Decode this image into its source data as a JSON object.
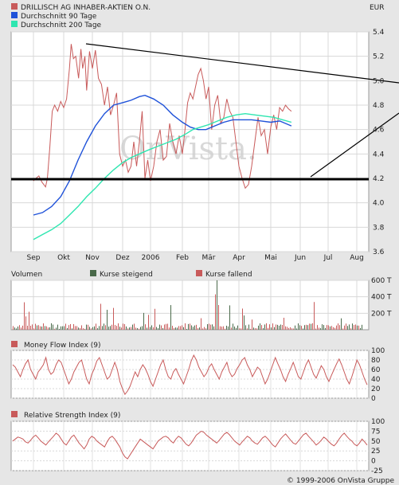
{
  "currency": "EUR",
  "copyright": "© 1999-2006 OnVista Gruppe",
  "watermark": "OnVista.",
  "colors": {
    "price": "#c85a5a",
    "ma90": "#1f52d9",
    "ma200": "#2ee6b0",
    "volume_up": "#4a6a4a",
    "volume_down": "#c85a5a",
    "indicator": "#c85a5a",
    "support": "#000000"
  },
  "chart_data": [
    {
      "type": "line",
      "title": "",
      "legend": [
        "DRILLISCH AG INHABER-AKTIEN O.N.",
        "Durchschnitt 90 Tage",
        "Durchschnitt 200 Tage"
      ],
      "legend_placement": "top-left",
      "x_ticks": [
        "Sep",
        "Okt",
        "Nov",
        "Dez",
        "2006",
        "Feb",
        "Mär",
        "Apr",
        "Mai",
        "Jun",
        "Jul",
        "Aug"
      ],
      "y_ticks": [
        "5.4",
        "5.2",
        "5.0",
        "4.8",
        "4.6",
        "4.4",
        "4.2",
        "4.0",
        "3.8",
        "3.6"
      ],
      "ylim": [
        3.6,
        5.4
      ],
      "grid": true,
      "series": [
        {
          "name": "DRILLISCH AG INHABER-AKTIEN O.N.",
          "points": [
            [
              0,
              4.18
            ],
            [
              0.08,
              4.2
            ],
            [
              0.18,
              4.22
            ],
            [
              0.28,
              4.17
            ],
            [
              0.4,
              4.13
            ],
            [
              0.46,
              4.2
            ],
            [
              0.54,
              4.45
            ],
            [
              0.62,
              4.75
            ],
            [
              0.7,
              4.8
            ],
            [
              0.8,
              4.75
            ],
            [
              0.9,
              4.83
            ],
            [
              1.0,
              4.78
            ],
            [
              1.1,
              4.85
            ],
            [
              1.2,
              5.1
            ],
            [
              1.26,
              5.3
            ],
            [
              1.34,
              5.18
            ],
            [
              1.42,
              5.2
            ],
            [
              1.52,
              5.02
            ],
            [
              1.6,
              5.26
            ],
            [
              1.66,
              5.1
            ],
            [
              1.74,
              5.2
            ],
            [
              1.8,
              4.92
            ],
            [
              1.9,
              5.24
            ],
            [
              2.0,
              5.1
            ],
            [
              2.1,
              5.25
            ],
            [
              2.2,
              5.02
            ],
            [
              2.3,
              4.97
            ],
            [
              2.4,
              4.8
            ],
            [
              2.5,
              4.95
            ],
            [
              2.6,
              4.72
            ],
            [
              2.7,
              4.8
            ],
            [
              2.8,
              4.9
            ],
            [
              2.9,
              4.4
            ],
            [
              3.0,
              4.3
            ],
            [
              3.1,
              4.35
            ],
            [
              3.2,
              4.25
            ],
            [
              3.3,
              4.3
            ],
            [
              3.4,
              4.5
            ],
            [
              3.5,
              4.3
            ],
            [
              3.6,
              4.5
            ],
            [
              3.7,
              4.75
            ],
            [
              3.8,
              4.2
            ],
            [
              3.9,
              4.35
            ],
            [
              4.0,
              4.18
            ],
            [
              4.1,
              4.3
            ],
            [
              4.2,
              4.5
            ],
            [
              4.3,
              4.6
            ],
            [
              4.4,
              4.35
            ],
            [
              4.5,
              4.38
            ],
            [
              4.6,
              4.65
            ],
            [
              4.7,
              4.5
            ],
            [
              4.8,
              4.4
            ],
            [
              4.9,
              4.55
            ],
            [
              5.0,
              4.4
            ],
            [
              5.1,
              4.6
            ],
            [
              5.2,
              4.82
            ],
            [
              5.3,
              4.9
            ],
            [
              5.4,
              4.85
            ],
            [
              5.5,
              4.95
            ],
            [
              5.6,
              5.05
            ],
            [
              5.7,
              5.1
            ],
            [
              5.8,
              5.0
            ],
            [
              5.9,
              4.85
            ],
            [
              6.0,
              4.95
            ],
            [
              6.1,
              4.6
            ],
            [
              6.2,
              4.8
            ],
            [
              6.3,
              4.88
            ],
            [
              6.4,
              4.65
            ],
            [
              6.5,
              4.7
            ],
            [
              6.6,
              4.85
            ],
            [
              6.7,
              4.75
            ],
            [
              6.8,
              4.7
            ],
            [
              6.9,
              4.5
            ],
            [
              7.0,
              4.3
            ],
            [
              7.1,
              4.2
            ],
            [
              7.2,
              4.12
            ],
            [
              7.3,
              4.15
            ],
            [
              7.4,
              4.3
            ],
            [
              7.5,
              4.5
            ],
            [
              7.6,
              4.7
            ],
            [
              7.7,
              4.55
            ],
            [
              7.8,
              4.6
            ],
            [
              7.9,
              4.4
            ],
            [
              8.0,
              4.62
            ],
            [
              8.1,
              4.72
            ],
            [
              8.2,
              4.6
            ],
            [
              8.3,
              4.78
            ],
            [
              8.4,
              4.75
            ],
            [
              8.5,
              4.8
            ],
            [
              8.6,
              4.77
            ],
            [
              8.7,
              4.75
            ]
          ]
        },
        {
          "name": "Durchschnitt 90 Tage",
          "points": [
            [
              0,
              3.9
            ],
            [
              0.3,
              3.92
            ],
            [
              0.6,
              3.97
            ],
            [
              0.9,
              4.05
            ],
            [
              1.2,
              4.18
            ],
            [
              1.5,
              4.35
            ],
            [
              1.8,
              4.5
            ],
            [
              2.1,
              4.63
            ],
            [
              2.4,
              4.73
            ],
            [
              2.7,
              4.8
            ],
            [
              3.0,
              4.82
            ],
            [
              3.3,
              4.84
            ],
            [
              3.6,
              4.87
            ],
            [
              3.8,
              4.88
            ],
            [
              4.1,
              4.85
            ],
            [
              4.4,
              4.8
            ],
            [
              4.7,
              4.72
            ],
            [
              5.0,
              4.66
            ],
            [
              5.3,
              4.62
            ],
            [
              5.6,
              4.6
            ],
            [
              5.9,
              4.6
            ],
            [
              6.2,
              4.63
            ],
            [
              6.5,
              4.66
            ],
            [
              6.8,
              4.68
            ],
            [
              7.1,
              4.68
            ],
            [
              7.4,
              4.68
            ],
            [
              7.7,
              4.67
            ],
            [
              8.0,
              4.66
            ],
            [
              8.3,
              4.67
            ],
            [
              8.5,
              4.65
            ],
            [
              8.7,
              4.63
            ]
          ]
        },
        {
          "name": "Durchschnitt 200 Tage",
          "points": [
            [
              0,
              3.7
            ],
            [
              0.3,
              3.74
            ],
            [
              0.6,
              3.78
            ],
            [
              0.9,
              3.83
            ],
            [
              1.2,
              3.9
            ],
            [
              1.5,
              3.97
            ],
            [
              1.8,
              4.05
            ],
            [
              2.1,
              4.12
            ],
            [
              2.4,
              4.2
            ],
            [
              2.7,
              4.27
            ],
            [
              3.0,
              4.33
            ],
            [
              3.3,
              4.37
            ],
            [
              3.6,
              4.4
            ],
            [
              3.9,
              4.43
            ],
            [
              4.2,
              4.46
            ],
            [
              4.5,
              4.49
            ],
            [
              4.8,
              4.52
            ],
            [
              5.1,
              4.56
            ],
            [
              5.4,
              4.6
            ],
            [
              5.7,
              4.62
            ],
            [
              6.0,
              4.64
            ],
            [
              6.3,
              4.67
            ],
            [
              6.6,
              4.7
            ],
            [
              6.9,
              4.72
            ],
            [
              7.2,
              4.73
            ],
            [
              7.5,
              4.72
            ],
            [
              7.8,
              4.71
            ],
            [
              8.1,
              4.7
            ],
            [
              8.4,
              4.68
            ],
            [
              8.7,
              4.66
            ]
          ]
        }
      ]
    },
    {
      "type": "bar",
      "title": "Volumen",
      "legend": [
        "Kurse steigend",
        "Kurse fallend"
      ],
      "y_ticks": [
        "600 T",
        "400 T",
        "200 T"
      ],
      "ylim": [
        0,
        600
      ]
    },
    {
      "type": "line",
      "title": "Money Flow Index (9)",
      "y_ticks": [
        "100",
        "80",
        "60",
        "40",
        "20",
        "0"
      ],
      "ylim": [
        0,
        100
      ],
      "values": [
        70,
        65,
        55,
        45,
        60,
        72,
        80,
        60,
        50,
        40,
        55,
        62,
        70,
        85,
        60,
        50,
        55,
        70,
        80,
        75,
        60,
        45,
        30,
        40,
        55,
        65,
        75,
        80,
        60,
        40,
        30,
        50,
        62,
        78,
        85,
        70,
        55,
        40,
        45,
        60,
        75,
        60,
        35,
        20,
        8,
        15,
        25,
        40,
        55,
        45,
        60,
        70,
        62,
        50,
        35,
        25,
        40,
        55,
        70,
        80,
        60,
        45,
        40,
        55,
        62,
        50,
        40,
        30,
        45,
        60,
        78,
        90,
        80,
        65,
        55,
        45,
        52,
        65,
        72,
        60,
        50,
        40,
        55,
        65,
        75,
        55,
        45,
        50,
        62,
        70,
        80,
        85,
        70,
        60,
        45,
        55,
        65,
        60,
        45,
        30,
        40,
        55,
        70,
        85,
        72,
        60,
        45,
        35,
        50,
        62,
        75,
        60,
        45,
        40,
        55,
        70,
        80,
        65,
        50,
        42,
        55,
        68,
        60,
        45,
        35,
        48,
        60,
        72,
        82,
        70,
        55,
        40,
        30,
        45,
        62,
        80,
        70,
        55,
        40,
        28
      ]
    },
    {
      "type": "line",
      "title": "Relative Strength Index (9)",
      "y_ticks": [
        "100",
        "75",
        "50",
        "25",
        "0",
        "-25"
      ],
      "ylim": [
        -25,
        100
      ],
      "values": [
        50,
        55,
        60,
        58,
        55,
        48,
        45,
        52,
        60,
        65,
        58,
        50,
        45,
        40,
        48,
        55,
        62,
        70,
        65,
        55,
        45,
        40,
        50,
        60,
        65,
        55,
        45,
        38,
        30,
        40,
        55,
        62,
        58,
        50,
        45,
        40,
        35,
        48,
        58,
        62,
        55,
        45,
        35,
        20,
        10,
        5,
        15,
        25,
        35,
        45,
        55,
        50,
        45,
        40,
        35,
        30,
        40,
        50,
        55,
        60,
        62,
        58,
        50,
        45,
        55,
        62,
        58,
        50,
        42,
        38,
        45,
        55,
        65,
        70,
        75,
        72,
        65,
        60,
        55,
        50,
        45,
        52,
        60,
        68,
        72,
        66,
        58,
        50,
        45,
        40,
        48,
        55,
        62,
        58,
        50,
        45,
        42,
        50,
        58,
        62,
        56,
        48,
        40,
        35,
        45,
        55,
        62,
        68,
        60,
        52,
        45,
        42,
        50,
        58,
        66,
        70,
        62,
        55,
        48,
        40,
        45,
        52,
        60,
        55,
        48,
        42,
        38,
        45,
        55,
        64,
        70,
        62,
        55,
        50,
        42,
        38,
        45,
        55,
        48,
        40
      ]
    }
  ]
}
